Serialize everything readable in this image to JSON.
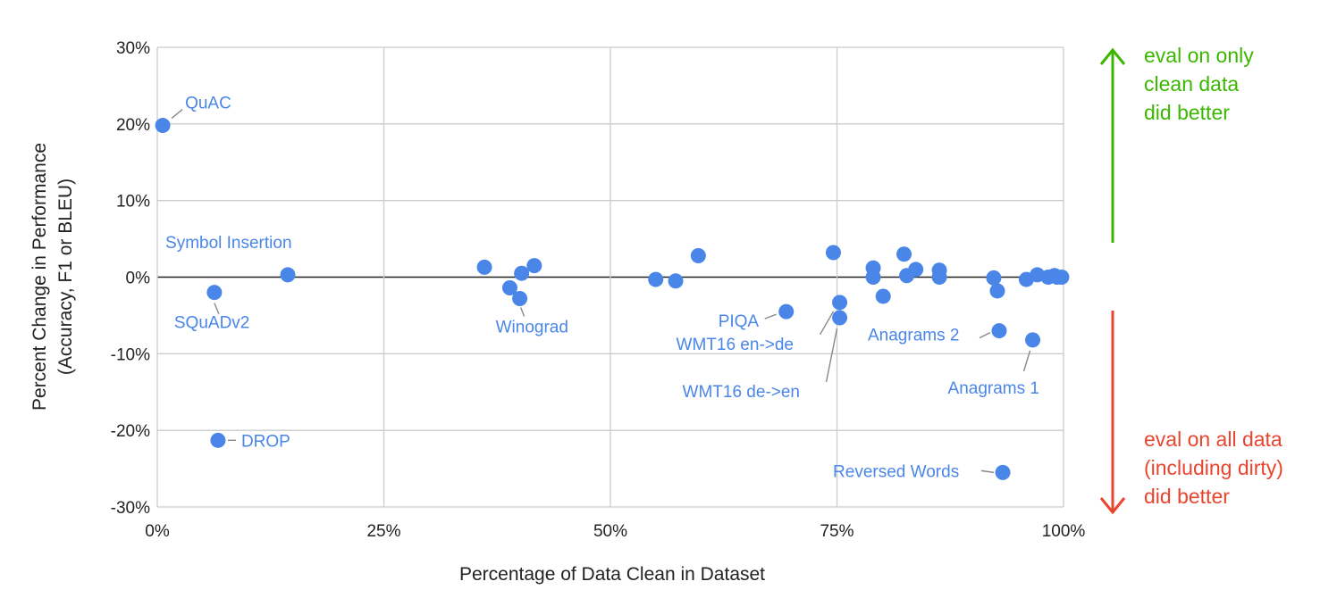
{
  "chart_data": {
    "type": "scatter",
    "xlabel": "Percentage of Data Clean in Dataset",
    "ylabel_lines": [
      "Percent Change in Performance",
      "(Accuracy,  F1 or BLEU)"
    ],
    "xlim": [
      0,
      100
    ],
    "ylim": [
      -30,
      30
    ],
    "x_ticks": [
      0,
      25,
      50,
      75,
      100
    ],
    "x_tick_labels": [
      "0%",
      "25%",
      "50%",
      "75%",
      "100%"
    ],
    "y_ticks": [
      30,
      20,
      10,
      0,
      -10,
      -20,
      -30
    ],
    "y_tick_labels": [
      "30%",
      "20%",
      "10%",
      "0%",
      "-10%",
      "-20%",
      "-30%"
    ],
    "grid": true,
    "point_color": "#4a86e8",
    "points": [
      {
        "x": 0.6,
        "y": 19.8,
        "label": "QuAC"
      },
      {
        "x": 6.3,
        "y": -2.0,
        "label": "SQuADv2"
      },
      {
        "x": 6.7,
        "y": -21.3,
        "label": "DROP"
      },
      {
        "x": 14.4,
        "y": 0.3,
        "label": "Symbol Insertion"
      },
      {
        "x": 36.1,
        "y": 1.3,
        "label": ""
      },
      {
        "x": 38.9,
        "y": -1.4,
        "label": ""
      },
      {
        "x": 40.0,
        "y": -2.8,
        "label": "Winograd"
      },
      {
        "x": 40.2,
        "y": 0.5,
        "label": ""
      },
      {
        "x": 41.6,
        "y": 1.5,
        "label": ""
      },
      {
        "x": 55.0,
        "y": -0.3,
        "label": ""
      },
      {
        "x": 57.2,
        "y": -0.5,
        "label": ""
      },
      {
        "x": 59.7,
        "y": 2.8,
        "label": ""
      },
      {
        "x": 69.4,
        "y": -4.5,
        "label": "PIQA"
      },
      {
        "x": 74.6,
        "y": 3.2,
        "label": ""
      },
      {
        "x": 75.3,
        "y": -3.3,
        "label": "WMT16 en->de"
      },
      {
        "x": 75.3,
        "y": -5.3,
        "label": "WMT16 de->en"
      },
      {
        "x": 79.0,
        "y": 1.2,
        "label": ""
      },
      {
        "x": 79.0,
        "y": 0.0,
        "label": ""
      },
      {
        "x": 80.1,
        "y": -2.5,
        "label": ""
      },
      {
        "x": 82.4,
        "y": 3.0,
        "label": ""
      },
      {
        "x": 82.7,
        "y": 0.2,
        "label": ""
      },
      {
        "x": 83.7,
        "y": 1.0,
        "label": ""
      },
      {
        "x": 86.3,
        "y": 0.9,
        "label": ""
      },
      {
        "x": 86.3,
        "y": 0.0,
        "label": ""
      },
      {
        "x": 92.3,
        "y": -0.1,
        "label": ""
      },
      {
        "x": 92.7,
        "y": -1.8,
        "label": ""
      },
      {
        "x": 92.9,
        "y": -7.0,
        "label": "Anagrams 2"
      },
      {
        "x": 93.3,
        "y": -25.5,
        "label": "Reversed Words"
      },
      {
        "x": 95.9,
        "y": -0.3,
        "label": ""
      },
      {
        "x": 96.6,
        "y": -8.2,
        "label": "Anagrams 1"
      },
      {
        "x": 97.1,
        "y": 0.3,
        "label": ""
      },
      {
        "x": 98.3,
        "y": 0.0,
        "label": ""
      },
      {
        "x": 99.0,
        "y": 0.2,
        "label": ""
      },
      {
        "x": 99.3,
        "y": 0.0,
        "label": ""
      },
      {
        "x": 99.8,
        "y": 0.0,
        "label": ""
      }
    ],
    "annotations": {
      "up": {
        "lines": [
          "eval on only",
          "clean data",
          "did better"
        ],
        "color": "#3cb700"
      },
      "down": {
        "lines": [
          "eval on all data",
          "(including dirty)",
          "did better"
        ],
        "color": "#e8452f"
      }
    }
  }
}
